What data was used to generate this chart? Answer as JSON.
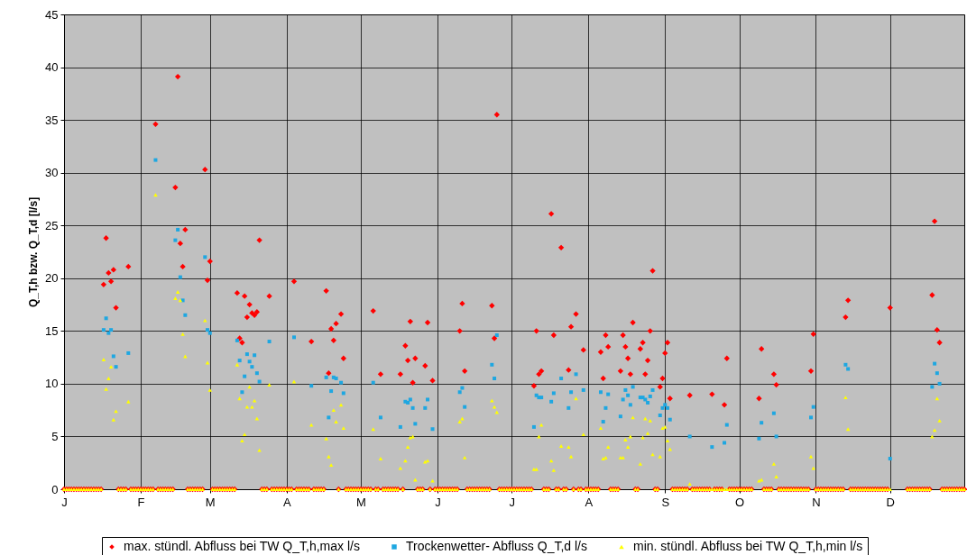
{
  "chart_data": {
    "type": "scatter",
    "ylabel": "Q_T,h bzw. Q_T,d [l/s]",
    "ylim": [
      0,
      45
    ],
    "yticks": [
      0,
      5,
      10,
      15,
      20,
      25,
      30,
      35,
      40,
      45
    ],
    "grid": true,
    "legend": "bottom",
    "categories": [
      "J",
      null,
      null,
      null,
      null,
      null,
      null,
      null,
      null,
      null,
      null,
      null,
      null,
      null,
      null,
      null,
      null,
      null,
      null,
      null,
      null,
      null,
      null,
      null,
      null,
      null,
      null,
      null,
      null,
      null,
      null,
      "F",
      null,
      null,
      null,
      null,
      null,
      null,
      null,
      null,
      null,
      null,
      null,
      null,
      null,
      null,
      null,
      null,
      null,
      null,
      null,
      null,
      null,
      null,
      null,
      null,
      null,
      null,
      null,
      "M",
      null,
      null,
      null,
      null,
      null,
      null,
      null,
      null,
      null,
      null,
      null,
      null,
      null,
      null,
      null,
      null,
      null,
      null,
      null,
      null,
      null,
      null,
      null,
      null,
      null,
      null,
      null,
      null,
      null,
      null,
      "A",
      null,
      null,
      null,
      null,
      null,
      null,
      null,
      null,
      null,
      null,
      null,
      null,
      null,
      null,
      null,
      null,
      null,
      null,
      null,
      null,
      null,
      null,
      null,
      null,
      null,
      null,
      null,
      null,
      null,
      "M",
      null,
      null,
      null,
      null,
      null,
      null,
      null,
      null,
      null,
      null,
      null,
      null,
      null,
      null,
      null,
      null,
      null,
      null,
      null,
      null,
      null,
      null,
      null,
      null,
      null,
      null,
      null,
      null,
      null,
      null,
      "J",
      null,
      null,
      null,
      null,
      null,
      null,
      null,
      null,
      null,
      null,
      null,
      null,
      null,
      null,
      null,
      null,
      null,
      null,
      null,
      null,
      null,
      null,
      null,
      null,
      null,
      null,
      null,
      null,
      null,
      "J",
      null,
      null,
      null,
      null,
      null,
      null,
      null,
      null,
      null,
      null,
      null,
      null,
      null,
      null,
      null,
      null,
      null,
      null,
      null,
      null,
      null,
      null,
      null,
      null,
      null,
      null,
      null,
      null,
      null,
      null,
      "A",
      null,
      null,
      null,
      null,
      null,
      null,
      null,
      null,
      null,
      null,
      null,
      null,
      null,
      null,
      null,
      null,
      null,
      null,
      null,
      null,
      null,
      null,
      null,
      null,
      null,
      null,
      null,
      null,
      null,
      null,
      "S",
      null,
      null,
      null,
      null,
      null,
      null,
      null,
      null,
      null,
      null,
      null,
      null,
      null,
      null,
      null,
      null,
      null,
      null,
      null,
      null,
      null,
      null,
      null,
      null,
      null,
      null,
      null,
      null,
      null,
      "O",
      null,
      null,
      null,
      null,
      null,
      null,
      null,
      null,
      null,
      null,
      null,
      null,
      null,
      null,
      null,
      null,
      null,
      null,
      null,
      null,
      null,
      null,
      null,
      null,
      null,
      null,
      null,
      null,
      null,
      null,
      "N",
      null,
      null,
      null,
      null,
      null,
      null,
      null,
      null,
      null,
      null,
      null,
      null,
      null,
      null,
      null,
      null,
      null,
      null,
      null,
      null,
      null,
      null,
      null,
      null,
      null,
      null,
      null,
      null,
      null,
      "D",
      null,
      null,
      null,
      null,
      null,
      null,
      null,
      null,
      null,
      null,
      null,
      null,
      null,
      null,
      null,
      null,
      null,
      null,
      null,
      null,
      null,
      null,
      null,
      null,
      null,
      null,
      null,
      null,
      null,
      null
    ],
    "series": [
      {
        "name": "max. stündl. Abfluss bei TW Q_T,h,max l/s",
        "color": "#ff0000",
        "marker": "diamond",
        "values": [
          0,
          0,
          0,
          0,
          0,
          0,
          0,
          0,
          0,
          0,
          0,
          0,
          0,
          0,
          0,
          0,
          19.4,
          23.8,
          20.5,
          19.7,
          20.8,
          17.2,
          0,
          0,
          0,
          0,
          21.1,
          0,
          0,
          0,
          0,
          0,
          0,
          0,
          0,
          0,
          0,
          34.6,
          0,
          0,
          0,
          0,
          0,
          0,
          0,
          28.6,
          39.1,
          23.3,
          21.1,
          24.6,
          0,
          0,
          0,
          0,
          0,
          0,
          0,
          30.3,
          19.8,
          21.6,
          0,
          0,
          0,
          0,
          0,
          0,
          0,
          0,
          0,
          0,
          18.6,
          14.3,
          13.9,
          18.3,
          16.3,
          17.5,
          16.7,
          16.5,
          16.8,
          23.6,
          0,
          0,
          0,
          18.3,
          0,
          0,
          0,
          0,
          0,
          0,
          0,
          0,
          0,
          19.7,
          0,
          0,
          0,
          0,
          0,
          0,
          14.0,
          0,
          0,
          0,
          0,
          0,
          18.8,
          11.0,
          15.2,
          14.1,
          15.7,
          0,
          16.6,
          12.4,
          0,
          0,
          0,
          0,
          0,
          0,
          0,
          0,
          0,
          0,
          0,
          16.9,
          0,
          0,
          10.9,
          0,
          0,
          0,
          0,
          0,
          0,
          0,
          10.9,
          0,
          13.6,
          12.2,
          15.9,
          10.1,
          12.4,
          0,
          0,
          0,
          11.7,
          15.8,
          0,
          10.3,
          0,
          0,
          0,
          0,
          0,
          0,
          0,
          0,
          0,
          0,
          15.0,
          17.6,
          11.2,
          0,
          0,
          0,
          0,
          0,
          0,
          0,
          0,
          0,
          0,
          17.4,
          14.3,
          35.5,
          0,
          0,
          0,
          0,
          0,
          0,
          0,
          0,
          0,
          0,
          0,
          0,
          0,
          0,
          9.8,
          15.0,
          10.9,
          11.2,
          0,
          0,
          0,
          26.1,
          14.6,
          0,
          0,
          22.9,
          0,
          0,
          11.3,
          15.4,
          0,
          16.6,
          0,
          0,
          13.2,
          0,
          0,
          0,
          0,
          0,
          0,
          13.0,
          10.5,
          14.6,
          13.5,
          0,
          0,
          0,
          0,
          11.2,
          14.6,
          13.5,
          12.4,
          10.9,
          15.8,
          0,
          0,
          13.3,
          13.9,
          10.9,
          12.2,
          15.0,
          20.7,
          0,
          0,
          9.7,
          10.5,
          12.9,
          13.9,
          8.6,
          0,
          0,
          0,
          0,
          0,
          0,
          0,
          8.9,
          0,
          0,
          0,
          0,
          0,
          0,
          0,
          0,
          9.0,
          0,
          0,
          0,
          0,
          8.0,
          12.4,
          0,
          0,
          0,
          0,
          0,
          0,
          0,
          0,
          0,
          0,
          null,
          null,
          8.6,
          13.3,
          0,
          0,
          0,
          0,
          10.9,
          9.9,
          0,
          0,
          0,
          0,
          0,
          0,
          0,
          0,
          0,
          0,
          0,
          0,
          0,
          11.2,
          14.7,
          0,
          0,
          0,
          0,
          0,
          0,
          0,
          0,
          0,
          0,
          0,
          0,
          16.3,
          17.9,
          0,
          0,
          0,
          0,
          0,
          0,
          0,
          0,
          0,
          0,
          0,
          0,
          0,
          0,
          0,
          0,
          17.2,
          null,
          null,
          null,
          null,
          null,
          null,
          0,
          0,
          0,
          0,
          0,
          0,
          0,
          0,
          0,
          0,
          18.4,
          25.4,
          15.1,
          13.9,
          0,
          0,
          0,
          0,
          0,
          0,
          0,
          0,
          0,
          0
        ]
      },
      {
        "name": "Trockenwetter- Abfluss Q_T,d l/s",
        "color": "#1ea7e1",
        "marker": "square",
        "values": [
          null,
          null,
          null,
          null,
          null,
          null,
          null,
          null,
          null,
          null,
          null,
          null,
          null,
          null,
          null,
          null,
          15.1,
          16.2,
          14.8,
          15.1,
          12.6,
          11.6,
          null,
          null,
          null,
          null,
          12.9,
          null,
          null,
          null,
          null,
          null,
          null,
          null,
          null,
          null,
          null,
          31.2,
          null,
          null,
          null,
          null,
          null,
          null,
          null,
          23.6,
          24.6,
          20.1,
          17.9,
          16.5,
          null,
          null,
          null,
          null,
          null,
          null,
          null,
          22.0,
          15.1,
          14.8,
          null,
          null,
          null,
          null,
          null,
          null,
          null,
          null,
          null,
          null,
          14.1,
          12.2,
          9.2,
          10.7,
          12.8,
          12.1,
          11.6,
          12.7,
          11.0,
          10.2,
          null,
          null,
          null,
          14.0,
          null,
          null,
          null,
          null,
          null,
          null,
          null,
          null,
          null,
          14.4,
          null,
          null,
          null,
          null,
          null,
          null,
          9.8,
          null,
          null,
          null,
          null,
          null,
          10.6,
          6.8,
          9.3,
          10.6,
          10.5,
          null,
          10.1,
          9.1,
          null,
          null,
          null,
          null,
          null,
          null,
          null,
          null,
          null,
          null,
          null,
          10.1,
          null,
          null,
          6.8,
          null,
          null,
          null,
          null,
          null,
          null,
          null,
          5.9,
          null,
          8.3,
          8.2,
          8.5,
          7.7,
          6.2,
          null,
          null,
          null,
          7.7,
          8.5,
          null,
          5.7,
          null,
          null,
          null,
          null,
          null,
          null,
          null,
          null,
          null,
          null,
          9.2,
          9.6,
          7.8,
          null,
          null,
          null,
          null,
          null,
          null,
          null,
          null,
          null,
          null,
          11.8,
          10.5,
          14.6,
          null,
          null,
          null,
          null,
          null,
          null,
          null,
          null,
          null,
          null,
          null,
          null,
          null,
          null,
          5.9,
          8.9,
          8.7,
          8.7,
          null,
          null,
          null,
          8.3,
          9.1,
          null,
          null,
          10.5,
          null,
          null,
          7.7,
          9.2,
          null,
          10.9,
          null,
          null,
          9.4,
          null,
          null,
          null,
          null,
          null,
          null,
          9.2,
          6.4,
          7.7,
          9.0,
          null,
          null,
          null,
          null,
          6.9,
          8.5,
          9.4,
          8.9,
          8.0,
          9.7,
          null,
          null,
          8.7,
          8.7,
          8.5,
          8.2,
          8.8,
          9.4,
          null,
          null,
          7.0,
          7.7,
          8.0,
          7.7,
          6.6,
          null,
          null,
          null,
          null,
          null,
          null,
          null,
          5.0,
          null,
          null,
          null,
          null,
          null,
          null,
          null,
          null,
          4.0,
          null,
          null,
          null,
          null,
          4.4,
          6.1,
          null,
          null,
          null,
          null,
          null,
          null,
          null,
          null,
          null,
          null,
          null,
          null,
          4.8,
          6.3,
          null,
          null,
          null,
          null,
          7.2,
          5.0,
          null,
          null,
          null,
          null,
          null,
          null,
          null,
          null,
          null,
          null,
          null,
          null,
          null,
          6.8,
          7.8,
          null,
          null,
          null,
          null,
          null,
          null,
          null,
          null,
          null,
          null,
          null,
          null,
          11.8,
          11.4,
          null,
          null,
          null,
          null,
          null,
          null,
          null,
          null,
          null,
          null,
          null,
          null,
          null,
          null,
          null,
          null,
          2.9,
          null,
          null,
          null,
          null,
          null,
          null,
          null,
          null,
          null,
          null,
          null,
          null,
          null,
          null,
          null,
          null,
          9.7,
          11.9,
          11.0,
          10.0,
          null,
          null,
          null,
          null,
          null,
          null,
          null,
          null,
          null,
          null
        ]
      },
      {
        "name": "min. stündl. Abfluss bei TW Q_T,h,min l/s",
        "color": "#ffff00",
        "marker": "triangle",
        "values": [
          0,
          0,
          0,
          0,
          0,
          0,
          0,
          0,
          0,
          0,
          0,
          0,
          0,
          0,
          0,
          0,
          12.3,
          9.5,
          10.5,
          11.6,
          6.6,
          7.4,
          0,
          0,
          0,
          0,
          8.3,
          0,
          0,
          0,
          0,
          0,
          0,
          0,
          0,
          0,
          0,
          27.9,
          0,
          0,
          0,
          0,
          0,
          0,
          0,
          18.1,
          18.7,
          17.9,
          14.7,
          12.6,
          0,
          0,
          0,
          0,
          0,
          0,
          0,
          16.0,
          12.0,
          9.4,
          0,
          0,
          0,
          0,
          0,
          0,
          0,
          0,
          0,
          0,
          11.8,
          8.6,
          4.6,
          5.2,
          7.8,
          9.7,
          7.8,
          8.4,
          6.7,
          3.7,
          0,
          0,
          0,
          9.9,
          0,
          0,
          0,
          0,
          0,
          0,
          0,
          0,
          0,
          10.2,
          0,
          0,
          0,
          0,
          0,
          0,
          6.1,
          0,
          0,
          0,
          0,
          0,
          4.8,
          3.1,
          2.3,
          7.5,
          6.4,
          0,
          8.0,
          5.8,
          0,
          0,
          0,
          0,
          0,
          0,
          0,
          0,
          0,
          0,
          0,
          5.7,
          0,
          0,
          2.9,
          0,
          0,
          0,
          0,
          0,
          0,
          0,
          2.0,
          0,
          2.7,
          4.0,
          4.9,
          5.0,
          0.9,
          0,
          0,
          0,
          2.6,
          2.7,
          0,
          0.8,
          0,
          0,
          0,
          0,
          0,
          0,
          0,
          0,
          0,
          0,
          6.4,
          6.7,
          3.0,
          0,
          0,
          0,
          0,
          0,
          0,
          0,
          0,
          0,
          0,
          8.4,
          7.8,
          7.3,
          0,
          0,
          0,
          0,
          0,
          0,
          0,
          0,
          0,
          0,
          0,
          0,
          0,
          0,
          1.9,
          1.9,
          5.0,
          6.1,
          0,
          0,
          0,
          2.7,
          1.8,
          0,
          0,
          4.1,
          0,
          0,
          4.0,
          3.1,
          0,
          8.6,
          0,
          0,
          5.2,
          0,
          0,
          0,
          0,
          0,
          0,
          5.8,
          2.9,
          3.0,
          4.0,
          0,
          0,
          0,
          0,
          3.0,
          3.0,
          4.7,
          4.0,
          5.0,
          6.8,
          0,
          0,
          2.4,
          4.9,
          6.7,
          5.3,
          6.5,
          3.3,
          0,
          0,
          3.1,
          5.8,
          5.9,
          4.6,
          3.8,
          0,
          0,
          0,
          0,
          0,
          0,
          0,
          0.5,
          0,
          0,
          0,
          0,
          0,
          0,
          0,
          0,
          0,
          0,
          0,
          0,
          0,
          0,
          0,
          0,
          0,
          0,
          0,
          0,
          0,
          0,
          0,
          0,
          0,
          null,
          null,
          0.8,
          0.9,
          0,
          0,
          0,
          0,
          2.4,
          1.2,
          0,
          0,
          0,
          0,
          0,
          0,
          0,
          0,
          0,
          0,
          0,
          0,
          0,
          3.1,
          2.0,
          0,
          0,
          0,
          0,
          0,
          0,
          0,
          0,
          0,
          0,
          0,
          0,
          8.7,
          5.7,
          0,
          0,
          0,
          0,
          0,
          0,
          0,
          0,
          0,
          0,
          0,
          0,
          0,
          0,
          0,
          0,
          0,
          null,
          null,
          null,
          null,
          null,
          null,
          0,
          0,
          0,
          0,
          0,
          0,
          0,
          0,
          0,
          0,
          5.0,
          5.6,
          8.6,
          6.5,
          0,
          0,
          0,
          0,
          0,
          0,
          0,
          0,
          0,
          0
        ]
      }
    ]
  }
}
